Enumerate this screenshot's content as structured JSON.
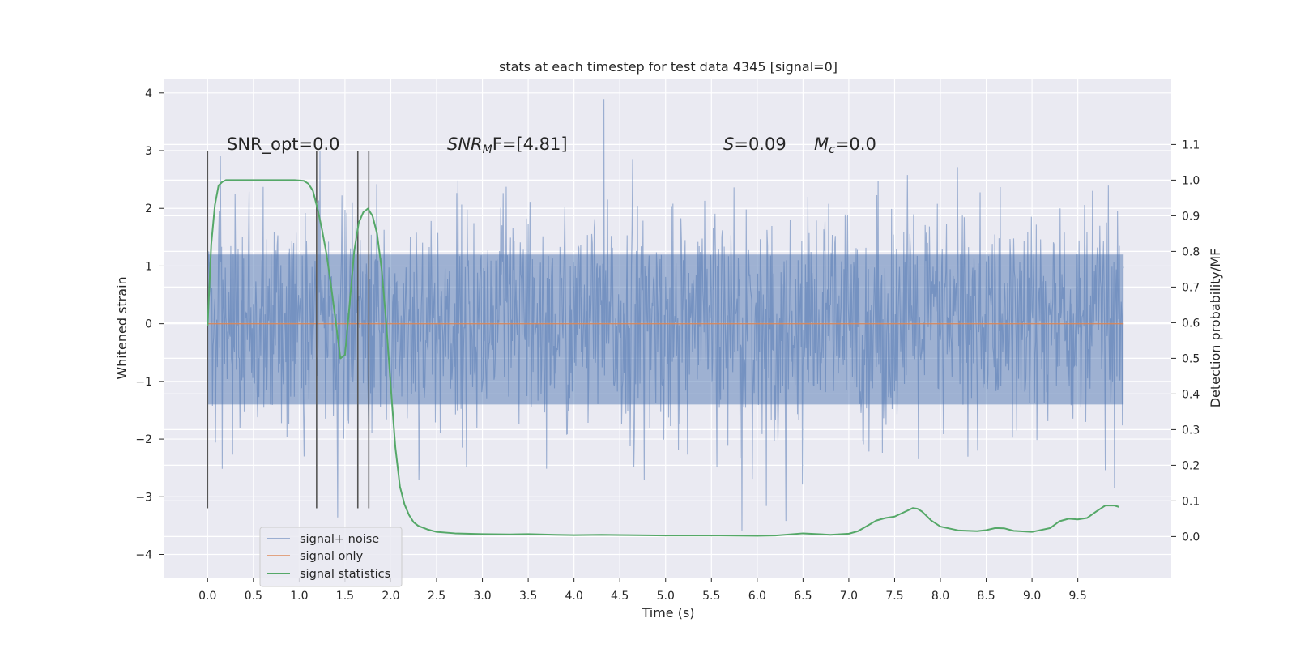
{
  "chart_data": {
    "type": "line",
    "title": "stats at each timestep for test data 4345 [signal=0]",
    "xlabel": "Time (s)",
    "ylabel": "Whitened strain",
    "y2label": "Detection probability/MF",
    "xlim": [
      -0.48,
      10.52
    ],
    "ylim": [
      -4.4,
      4.25
    ],
    "y2lim": [
      -0.115,
      1.285
    ],
    "xticks": [
      0.0,
      0.5,
      1.0,
      1.5,
      2.0,
      2.5,
      3.0,
      3.5,
      4.0,
      4.5,
      5.0,
      5.5,
      6.0,
      6.5,
      7.0,
      7.5,
      8.0,
      8.5,
      9.0,
      9.5
    ],
    "xtick_labels": [
      "0.0",
      "0.5",
      "1.0",
      "1.5",
      "2.0",
      "2.5",
      "3.0",
      "3.5",
      "4.0",
      "4.5",
      "5.0",
      "5.5",
      "6.0",
      "6.5",
      "7.0",
      "7.5",
      "8.0",
      "8.5",
      "9.0",
      "9.5"
    ],
    "yticks": [
      -4,
      -3,
      -2,
      -1,
      0,
      1,
      2,
      3,
      4
    ],
    "ytick_labels": [
      "−4",
      "−3",
      "−2",
      "−1",
      "0",
      "1",
      "2",
      "3",
      "4"
    ],
    "y2ticks": [
      0.0,
      0.1,
      0.2,
      0.3,
      0.4,
      0.5,
      0.6,
      0.7,
      0.8,
      0.9,
      1.0,
      1.1
    ],
    "y2tick_labels": [
      "0.0",
      "0.1",
      "0.2",
      "0.3",
      "0.4",
      "0.5",
      "0.6",
      "0.7",
      "0.8",
      "0.9",
      "1.0",
      "1.1"
    ],
    "grid": true,
    "legend_position": "lower-left",
    "annotations": {
      "snr_opt": "SNR_opt=0.0",
      "snr_mf_base": "SNR",
      "snr_mf_sub": "M",
      "snr_mf_rest": "F=[4.81]",
      "s_var": "S",
      "s_rest": "=0.09",
      "mc_var": "M",
      "mc_sub": "c",
      "mc_rest": "=0.0"
    },
    "vertical_lines": [
      {
        "x": 0.0,
        "ymin": -3.2,
        "ymax": 3.0
      },
      {
        "x": 1.19,
        "ymin": -3.2,
        "ymax": 3.0
      },
      {
        "x": 1.64,
        "ymin": -3.2,
        "ymax": 3.0
      },
      {
        "x": 1.76,
        "ymin": -3.2,
        "ymax": 3.0
      }
    ],
    "series": [
      {
        "name": "signal+ noise",
        "color": "#4c72b0",
        "opacity": 0.5,
        "t_range": [
          0.0,
          10.0
        ],
        "typical_amplitude": [
          -1.4,
          1.2
        ],
        "y_range": [
          -3.7,
          3.9
        ]
      },
      {
        "name": "signal only",
        "color": "#dd8452",
        "x": [
          0.0,
          10.0
        ],
        "y": [
          0.0,
          0.0
        ]
      },
      {
        "name": "signal statistics",
        "color": "#55a868",
        "axis": "right",
        "x": [
          0.0,
          0.04,
          0.08,
          0.12,
          0.16,
          0.2,
          0.3,
          0.4,
          0.6,
          0.8,
          0.95,
          1.05,
          1.1,
          1.15,
          1.2,
          1.25,
          1.3,
          1.35,
          1.4,
          1.45,
          1.5,
          1.55,
          1.6,
          1.65,
          1.7,
          1.75,
          1.8,
          1.85,
          1.9,
          1.95,
          2.0,
          2.05,
          2.1,
          2.15,
          2.2,
          2.25,
          2.3,
          2.4,
          2.5,
          2.7,
          3.0,
          3.3,
          3.5,
          3.8,
          4.0,
          4.3,
          4.6,
          5.0,
          5.5,
          6.0,
          6.2,
          6.5,
          6.8,
          7.0,
          7.1,
          7.2,
          7.3,
          7.4,
          7.5,
          7.6,
          7.7,
          7.75,
          7.8,
          7.9,
          8.0,
          8.2,
          8.4,
          8.5,
          8.6,
          8.7,
          8.8,
          9.0,
          9.2,
          9.3,
          9.4,
          9.5,
          9.6,
          9.7,
          9.8,
          9.9,
          9.95
        ],
        "y": [
          0.59,
          0.82,
          0.93,
          0.985,
          0.995,
          1.0,
          1.0,
          1.0,
          1.0,
          1.0,
          1.0,
          0.998,
          0.99,
          0.97,
          0.92,
          0.86,
          0.79,
          0.7,
          0.6,
          0.5,
          0.51,
          0.65,
          0.8,
          0.88,
          0.91,
          0.92,
          0.9,
          0.85,
          0.75,
          0.6,
          0.42,
          0.25,
          0.14,
          0.09,
          0.06,
          0.04,
          0.03,
          0.02,
          0.013,
          0.009,
          0.007,
          0.006,
          0.007,
          0.005,
          0.004,
          0.005,
          0.004,
          0.003,
          0.003,
          0.002,
          0.003,
          0.009,
          0.005,
          0.008,
          0.015,
          0.03,
          0.045,
          0.052,
          0.056,
          0.068,
          0.08,
          0.078,
          0.07,
          0.045,
          0.028,
          0.017,
          0.015,
          0.018,
          0.024,
          0.023,
          0.016,
          0.013,
          0.024,
          0.043,
          0.05,
          0.048,
          0.052,
          0.07,
          0.087,
          0.087,
          0.083
        ]
      }
    ]
  }
}
